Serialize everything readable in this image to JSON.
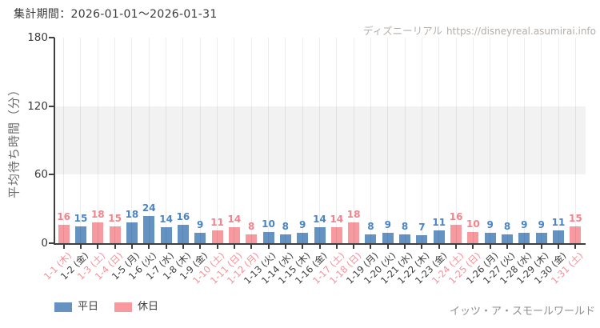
{
  "header": {
    "period_label": "集計期間：2026-01-01～2026-01-31",
    "watermark_site": "ディズニーリアル",
    "watermark_url": "https://disneyreal.asumirai.info"
  },
  "chart_data": {
    "type": "bar",
    "title": "集計期間：2026-01-01～2026-01-31",
    "xlabel": "",
    "ylabel": "平均待ち時間（分）",
    "ylim": [
      0,
      180
    ],
    "y_ticks": [
      0,
      60,
      120,
      180
    ],
    "shaded_band": [
      60,
      120
    ],
    "grid": "vertical-per-category",
    "legend_position": "bottom-left",
    "categories": [
      "1-1 (木)",
      "1-2 (金)",
      "1-3 (土)",
      "1-4 (日)",
      "1-5 (月)",
      "1-6 (火)",
      "1-7 (水)",
      "1-8 (木)",
      "1-9 (金)",
      "1-10 (土)",
      "1-11 (日)",
      "1-12 (月)",
      "1-13 (火)",
      "1-14 (水)",
      "1-15 (木)",
      "1-16 (金)",
      "1-17 (土)",
      "1-18 (日)",
      "1-19 (月)",
      "1-20 (火)",
      "1-21 (水)",
      "1-22 (木)",
      "1-23 (金)",
      "1-24 (土)",
      "1-25 (日)",
      "1-26 (月)",
      "1-27 (火)",
      "1-28 (水)",
      "1-29 (木)",
      "1-30 (金)",
      "1-31 (土)"
    ],
    "values": [
      16,
      15,
      18,
      15,
      18,
      24,
      14,
      16,
      9,
      11,
      14,
      8,
      10,
      8,
      9,
      14,
      14,
      18,
      8,
      9,
      8,
      7,
      11,
      16,
      10,
      9,
      8,
      9,
      9,
      11,
      15
    ],
    "day_types": [
      "holiday",
      "weekday",
      "holiday",
      "holiday",
      "weekday",
      "weekday",
      "weekday",
      "weekday",
      "weekday",
      "holiday",
      "holiday",
      "holiday",
      "weekday",
      "weekday",
      "weekday",
      "weekday",
      "holiday",
      "holiday",
      "weekday",
      "weekday",
      "weekday",
      "weekday",
      "weekday",
      "holiday",
      "holiday",
      "weekday",
      "weekday",
      "weekday",
      "weekday",
      "weekday",
      "holiday"
    ],
    "series_colors": {
      "weekday": "#6492c3",
      "holiday": "#f79aa0"
    },
    "value_label_colors": {
      "weekday": "#4a84c4",
      "holiday": "#f4828b"
    },
    "tick_label_colors": {
      "weekday": "#3b3b3b",
      "holiday": "#f68f97"
    }
  },
  "legend": {
    "items": [
      {
        "label": "平日",
        "type": "weekday",
        "color": "#6492c3"
      },
      {
        "label": "休日",
        "type": "holiday",
        "color": "#f79aa0"
      }
    ]
  },
  "footer": {
    "attraction": "イッツ・ア・スモールワールド"
  }
}
